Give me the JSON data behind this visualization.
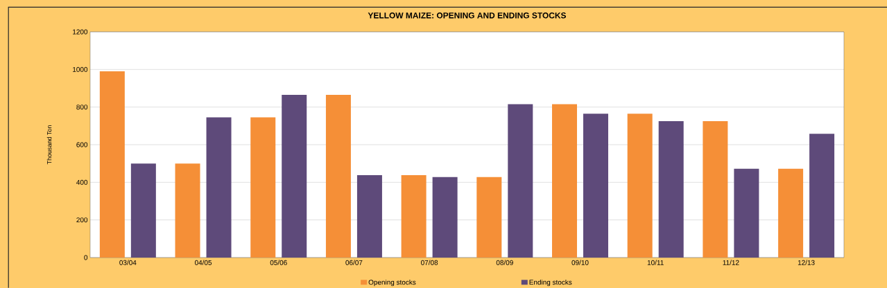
{
  "chart_data": {
    "type": "bar",
    "title": "YELLOW MAIZE: OPENING AND ENDING STOCKS",
    "ylabel": "Thousand Ton",
    "categories": [
      "03/04",
      "04/05",
      "05/06",
      "06/07",
      "07/08",
      "08/09",
      "09/10",
      "10/11",
      "11/12",
      "12/13"
    ],
    "series": [
      {
        "name": "Opening stocks",
        "color": "#f58f37",
        "values": [
          990,
          500,
          745,
          865,
          438,
          428,
          815,
          765,
          725,
          472
        ]
      },
      {
        "name": "Ending stocks",
        "color": "#5e4a7a",
        "values": [
          500,
          745,
          865,
          438,
          428,
          815,
          765,
          725,
          472,
          658
        ]
      }
    ],
    "ylim": [
      0,
      1200
    ],
    "yticks": [
      0,
      200,
      400,
      600,
      800,
      1000,
      1200
    ],
    "grid": "y",
    "legend": "bottom"
  }
}
